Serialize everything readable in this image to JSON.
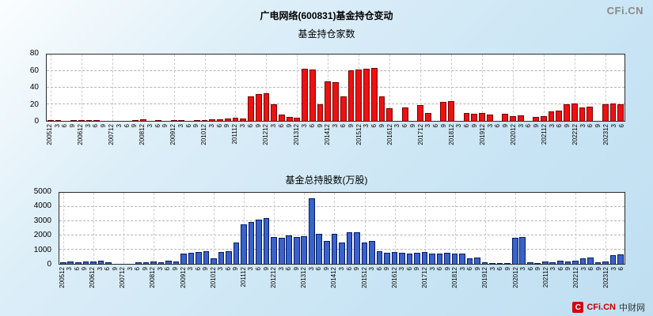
{
  "header": {
    "title": "广电网络(600831)基金持仓变动"
  },
  "branding": {
    "watermark": "CFi.CN",
    "logo_mark": "C",
    "logo_prefix": "CFi.CN",
    "logo_suffix": "中财网",
    "logo_color": "#d40000"
  },
  "chart_data": [
    {
      "type": "bar",
      "title": "基金持仓家数",
      "xlabel": "",
      "ylabel": "",
      "color": "#ee1111",
      "border_color": "#7a0000",
      "ylim": [
        0,
        80
      ],
      "yticks": [
        0,
        20,
        40,
        60,
        80
      ],
      "grid": true,
      "legend": "none",
      "categories": [
        "200512",
        "3",
        "6",
        "9",
        "200612",
        "3",
        "6",
        "9",
        "200712",
        "3",
        "6",
        "9",
        "200812",
        "3",
        "6",
        "9",
        "200912",
        "3",
        "6",
        "9",
        "201012",
        "3",
        "6",
        "9",
        "201112",
        "3",
        "6",
        "9",
        "201212",
        "3",
        "6",
        "9",
        "201312",
        "3",
        "6",
        "9",
        "201412",
        "3",
        "6",
        "9",
        "201512",
        "3",
        "6",
        "9",
        "201612",
        "3",
        "6",
        "9",
        "201712",
        "3",
        "6",
        "9",
        "201812",
        "3",
        "6",
        "9",
        "201912",
        "3",
        "6",
        "9",
        "202012",
        "3",
        "6",
        "9",
        "202112",
        "3",
        "6",
        "9",
        "202212",
        "3",
        "6",
        "9",
        "202312",
        "3",
        "6"
      ],
      "values": [
        1,
        1,
        0,
        1,
        1,
        1,
        1,
        0,
        0,
        0,
        0,
        1,
        2,
        0,
        1,
        0,
        1,
        1,
        0,
        1,
        1,
        2,
        2,
        3,
        4,
        3,
        30,
        32,
        33,
        20,
        8,
        5,
        4,
        63,
        62,
        20,
        48,
        47,
        30,
        61,
        62,
        63,
        64,
        30,
        15,
        0,
        16,
        0,
        19,
        10,
        0,
        23,
        24,
        0,
        10,
        9,
        10,
        8,
        0,
        9,
        6,
        7,
        0,
        5,
        6,
        11,
        12,
        20,
        21,
        16,
        17,
        0,
        20,
        21,
        20
      ]
    },
    {
      "type": "bar",
      "title": "基金总持股数(万股)",
      "xlabel": "",
      "ylabel": "",
      "color": "#3a62c8",
      "border_color": "#001a66",
      "ylim": [
        0,
        5000
      ],
      "yticks": [
        0,
        1000,
        2000,
        3000,
        4000,
        5000
      ],
      "grid": true,
      "legend": "none",
      "categories": [
        "200512",
        "3",
        "6",
        "9",
        "200612",
        "3",
        "6",
        "9",
        "200712",
        "3",
        "6",
        "9",
        "200812",
        "3",
        "6",
        "9",
        "200912",
        "3",
        "6",
        "9",
        "201012",
        "3",
        "6",
        "9",
        "201112",
        "3",
        "6",
        "9",
        "201212",
        "3",
        "6",
        "9",
        "201312",
        "3",
        "6",
        "9",
        "201412",
        "3",
        "6",
        "9",
        "201512",
        "3",
        "6",
        "9",
        "201612",
        "3",
        "6",
        "9",
        "201712",
        "3",
        "6",
        "9",
        "201812",
        "3",
        "6",
        "9",
        "201912",
        "3",
        "6",
        "9",
        "202012",
        "3",
        "6",
        "9",
        "202112",
        "3",
        "6",
        "9",
        "202212",
        "3",
        "6",
        "9",
        "202312",
        "3",
        "6"
      ],
      "values": [
        100,
        150,
        120,
        180,
        150,
        200,
        100,
        0,
        0,
        0,
        100,
        120,
        150,
        100,
        200,
        150,
        750,
        800,
        850,
        900,
        400,
        850,
        900,
        1500,
        2800,
        2950,
        3100,
        3200,
        1900,
        1850,
        2000,
        1900,
        1950,
        4600,
        2100,
        1600,
        2100,
        1500,
        2250,
        2200,
        1500,
        1600,
        900,
        800,
        850,
        800,
        750,
        800,
        850,
        700,
        750,
        800,
        700,
        750,
        400,
        450,
        100,
        80,
        60,
        50,
        1850,
        1900,
        100,
        80,
        150,
        100,
        200,
        150,
        200,
        400,
        450,
        100,
        150,
        600,
        650
      ]
    }
  ]
}
